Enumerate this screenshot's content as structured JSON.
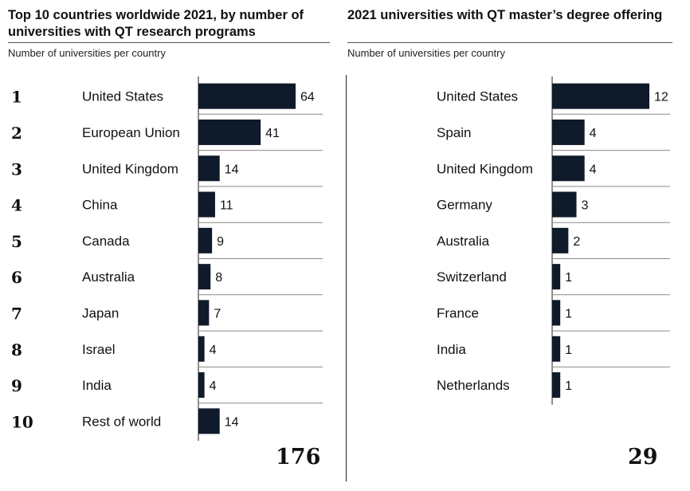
{
  "chart_data": [
    {
      "type": "bar",
      "orientation": "horizontal",
      "title": "Top 10 countries worldwide 2021, by number of universities with QT research programs",
      "subtitle": "Number of universities per country",
      "ranks": [
        "1",
        "2",
        "3",
        "4",
        "5",
        "6",
        "7",
        "8",
        "9",
        "10"
      ],
      "categories": [
        "United States",
        "European Union",
        "United Kingdom",
        "China",
        "Canada",
        "Australia",
        "Japan",
        "Israel",
        "India",
        "Rest of world"
      ],
      "values": [
        64,
        41,
        14,
        11,
        9,
        8,
        7,
        4,
        4,
        14
      ],
      "total": "176",
      "xlim": [
        0,
        64
      ]
    },
    {
      "type": "bar",
      "orientation": "horizontal",
      "title": "2021 universities with QT master’s degree offering",
      "subtitle": "Number of universities per country",
      "categories": [
        "United States",
        "Spain",
        "United Kingdom",
        "Germany",
        "Australia",
        "Switzerland",
        "France",
        "India",
        "Netherlands"
      ],
      "values": [
        12,
        4,
        4,
        3,
        2,
        1,
        1,
        1,
        1
      ],
      "total": "29",
      "xlim": [
        0,
        12
      ]
    }
  ]
}
